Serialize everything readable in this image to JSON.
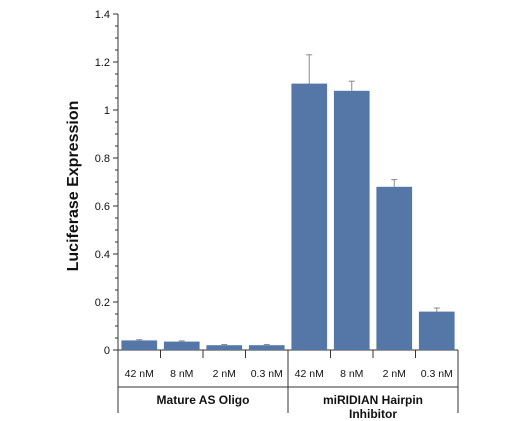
{
  "chart_data": {
    "type": "bar",
    "ylabel": "Luciferase Expression",
    "ylim": [
      0,
      1.4
    ],
    "yticks": [
      "0",
      "0.2",
      "0.4",
      "0.6",
      "0.8",
      "1",
      "1.2",
      "1.4"
    ],
    "yticks_values": [
      0,
      0.2,
      0.4,
      0.6,
      0.8,
      1.0,
      1.2,
      1.4
    ],
    "categories": [
      "42 nM",
      "8 nM",
      "2 nM",
      "0.3 nM",
      "42 nM",
      "8 nM",
      "2 nM",
      "0.3 nM"
    ],
    "values": [
      0.04,
      0.035,
      0.02,
      0.02,
      1.11,
      1.08,
      0.68,
      0.16
    ],
    "errors": [
      0.003,
      0.003,
      0.003,
      0.003,
      0.12,
      0.04,
      0.03,
      0.015
    ],
    "groups": [
      {
        "label": "Mature AS Oligo",
        "lines": [
          "Mature AS Oligo"
        ],
        "start": 0,
        "end": 3
      },
      {
        "label": "miRIDIAN Hairpin Inhibitor",
        "lines": [
          "miRIDIAN Hairpin",
          "Inhibitor"
        ],
        "start": 4,
        "end": 7
      }
    ],
    "bar_color": "#5577a8",
    "error_color": "#888888",
    "axis_color": "#333333",
    "grid": false
  }
}
